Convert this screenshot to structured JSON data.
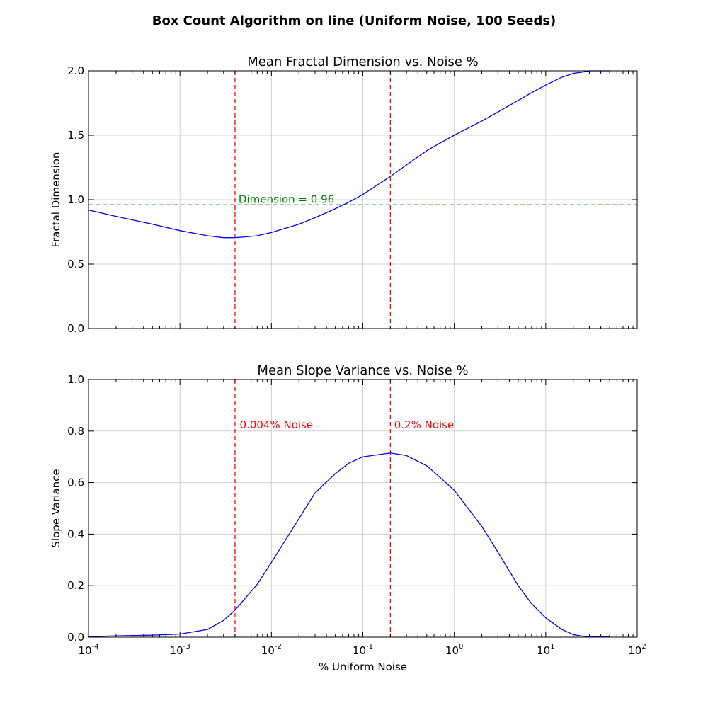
{
  "figure": {
    "suptitle": "Box Count Algorithm on line (Uniform Noise, 100 Seeds)"
  },
  "colors": {
    "curve": "#0000ff",
    "vline": "#ff0000",
    "hline": "#008000",
    "grid": "#d0d0d0"
  },
  "chart_data": [
    {
      "type": "line",
      "title": "Mean Fractal Dimension vs. Noise %",
      "xlabel": "",
      "ylabel": "Fractal Dimension",
      "xscale": "log",
      "xlim": [
        0.0001,
        100
      ],
      "ylim": [
        0,
        2.0
      ],
      "yticks": [
        0.0,
        0.5,
        1.0,
        1.5,
        2.0
      ],
      "ytick_labels": [
        "0.0",
        "0.5",
        "1.0",
        "1.5",
        "2.0"
      ],
      "grid": true,
      "series": [
        {
          "x": [
            0.0001,
            0.0002,
            0.0005,
            0.001,
            0.002,
            0.003,
            0.004,
            0.005,
            0.007,
            0.01,
            0.02,
            0.03,
            0.05,
            0.07,
            0.1,
            0.2,
            0.3,
            0.5,
            0.7,
            1,
            2,
            3,
            5,
            7,
            10,
            15,
            20,
            25,
            30,
            40,
            50
          ],
          "y": [
            0.92,
            0.87,
            0.81,
            0.76,
            0.72,
            0.705,
            0.705,
            0.71,
            0.72,
            0.745,
            0.81,
            0.86,
            0.93,
            0.98,
            1.04,
            1.18,
            1.27,
            1.38,
            1.44,
            1.5,
            1.61,
            1.68,
            1.77,
            1.83,
            1.89,
            1.95,
            1.98,
            1.99,
            2.0,
            2.0,
            2.0
          ]
        }
      ],
      "vlines": [
        0.004,
        0.2
      ],
      "hline": {
        "y": 0.96,
        "label": "Dimension = 0.96"
      }
    },
    {
      "type": "line",
      "title": "Mean Slope Variance vs. Noise %",
      "xlabel": "% Uniform Noise",
      "ylabel": "Slope Variance",
      "xscale": "log",
      "xlim": [
        0.0001,
        100
      ],
      "ylim": [
        0,
        1.0
      ],
      "yticks": [
        0.0,
        0.2,
        0.4,
        0.6,
        0.8,
        1.0
      ],
      "ytick_labels": [
        "0.0",
        "0.2",
        "0.4",
        "0.6",
        "0.8",
        "1.0"
      ],
      "xtick_exponents": [
        "-4",
        "-3",
        "-2",
        "-1",
        "0",
        "1",
        "2"
      ],
      "xtick_base": "10",
      "grid": true,
      "series": [
        {
          "x": [
            0.0001,
            0.0002,
            0.0005,
            0.001,
            0.002,
            0.003,
            0.004,
            0.005,
            0.007,
            0.01,
            0.02,
            0.03,
            0.05,
            0.07,
            0.1,
            0.2,
            0.3,
            0.5,
            0.7,
            1,
            2,
            3,
            5,
            7,
            10,
            15,
            20,
            25,
            30,
            40,
            50
          ],
          "y": [
            0.002,
            0.005,
            0.008,
            0.012,
            0.03,
            0.065,
            0.105,
            0.145,
            0.205,
            0.29,
            0.46,
            0.56,
            0.635,
            0.675,
            0.7,
            0.715,
            0.705,
            0.665,
            0.62,
            0.57,
            0.43,
            0.33,
            0.2,
            0.13,
            0.075,
            0.03,
            0.01,
            0.004,
            0.002,
            0.001,
            0.001
          ]
        }
      ],
      "vlines": [
        0.004,
        0.2
      ],
      "annotations": [
        {
          "x": 0.0045,
          "y": 0.81,
          "text": "0.004% Noise"
        },
        {
          "x": 0.22,
          "y": 0.81,
          "text": "0.2% Noise"
        }
      ]
    }
  ]
}
